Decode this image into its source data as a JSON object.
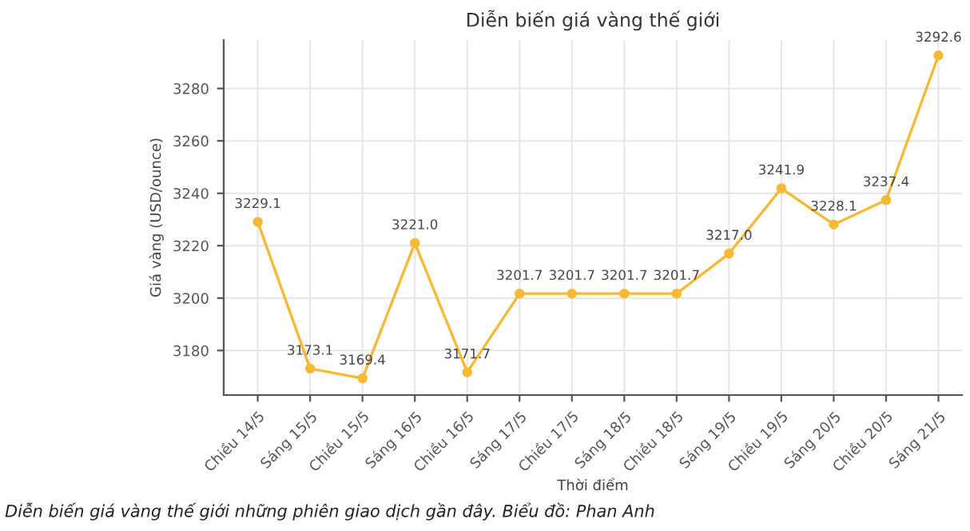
{
  "chart_data": {
    "type": "line",
    "title": "Diễn biến giá vàng thế giới",
    "xlabel": "Thời điểm",
    "ylabel": "Giá vàng (USD/ounce)",
    "categories": [
      "Chiều 14/5",
      "Sáng 15/5",
      "Chiều 15/5",
      "Sáng 16/5",
      "Chiều 16/5",
      "Sáng 17/5",
      "Chiều 17/5",
      "Sáng 18/5",
      "Chiều 18/5",
      "Sáng 19/5",
      "Chiều 19/5",
      "Sáng 20/5",
      "Chiều 20/5",
      "Sáng 21/5"
    ],
    "series": [
      {
        "color": "#f5b935",
        "values": [
          3229.1,
          3173.1,
          3169.4,
          3221.0,
          3171.7,
          3201.7,
          3201.7,
          3201.7,
          3201.7,
          3217.0,
          3241.9,
          3228.1,
          3237.4,
          3292.6
        ],
        "value_labels": [
          "3229.1",
          "3173.1",
          "3169.4",
          "3221.0",
          "3171.7",
          "3201.7",
          "3201.7",
          "3201.7",
          "3201.7",
          "3217.0",
          "3241.9",
          "3228.1",
          "3237.4",
          "3292.6"
        ]
      }
    ],
    "ylim": [
      3163,
      3298.5
    ],
    "yticks": [
      3180,
      3200,
      3220,
      3240,
      3260,
      3280
    ],
    "grid": true,
    "marker": "circle",
    "line_style": "solid",
    "annotations": [
      "Diễn biến giá vàng thế giới những phiên giao dịch gần đây. Biểu đồ: Phan Anh"
    ]
  }
}
